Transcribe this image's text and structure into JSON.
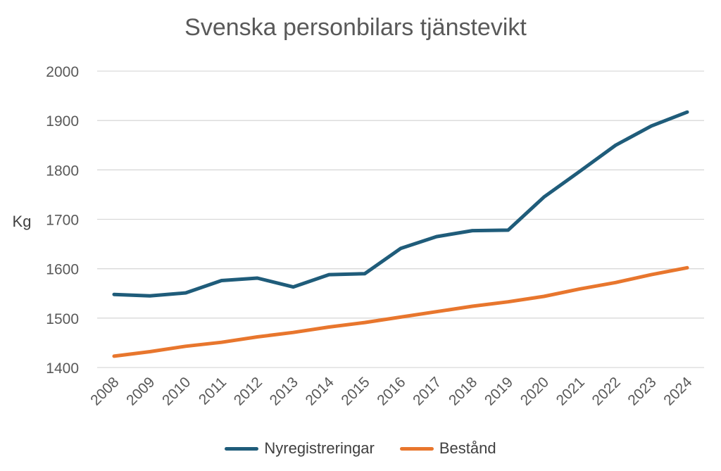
{
  "chart_data": {
    "type": "line",
    "title": "Svenska personbilars tjänstevikt",
    "xlabel": "",
    "ylabel": "Kg",
    "ylim": [
      1400,
      2000
    ],
    "yticks": [
      1400,
      1500,
      1600,
      1700,
      1800,
      1900,
      2000
    ],
    "grid": true,
    "legend_position": "bottom",
    "categories": [
      "2008",
      "2009",
      "2010",
      "2011",
      "2012",
      "2013",
      "2014",
      "2015",
      "2016",
      "2017",
      "2018",
      "2019",
      "2020",
      "2021",
      "2022",
      "2023",
      "2024"
    ],
    "series": [
      {
        "name": "Nyregistreringar",
        "color": "#1F5C7A",
        "values": [
          1548,
          1545,
          1551,
          1576,
          1581,
          1563,
          1588,
          1590,
          1641,
          1665,
          1677,
          1678,
          1745,
          1797,
          1850,
          1889,
          1917
        ]
      },
      {
        "name": "Bestånd",
        "color": "#E8762D",
        "values": [
          1423,
          1432,
          1443,
          1451,
          1462,
          1471,
          1482,
          1491,
          1502,
          1513,
          1524,
          1533,
          1544,
          1559,
          1572,
          1588,
          1602
        ]
      }
    ]
  }
}
